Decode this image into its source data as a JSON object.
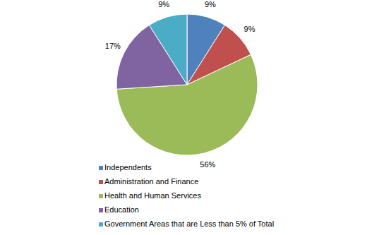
{
  "chart_data": {
    "type": "pie",
    "categories": [
      "Independents",
      "Administration and Finance",
      "Health and Human Services",
      "Education",
      "Government Areas that are Less than 5% of Total"
    ],
    "values": [
      9,
      9,
      56,
      17,
      9
    ],
    "value_labels": [
      "9%",
      "9%",
      "56%",
      "17%",
      "9%"
    ],
    "colors": [
      "#4f81bd",
      "#c0504d",
      "#9bbb59",
      "#8064a2",
      "#4bacc6"
    ],
    "data_labels": true,
    "legend": "bottom"
  }
}
